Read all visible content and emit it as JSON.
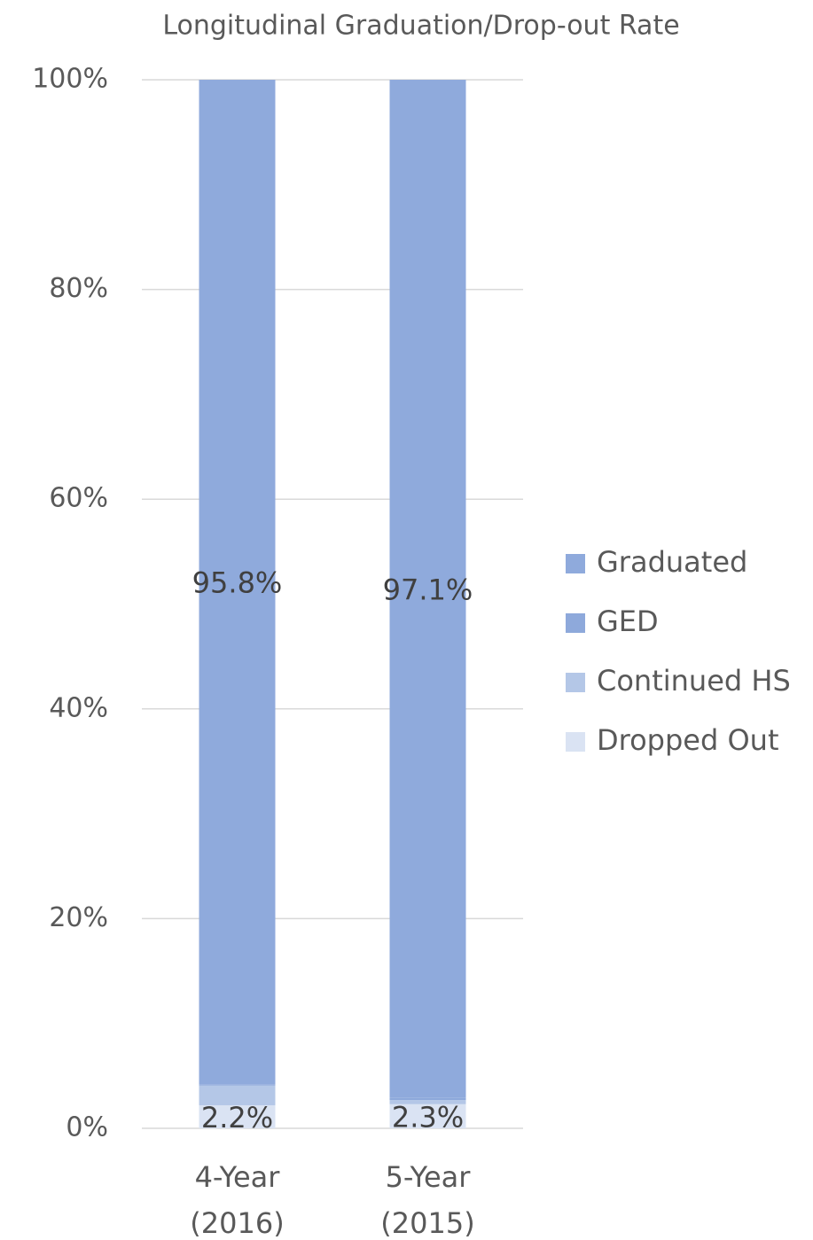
{
  "chart_data": {
    "type": "stacked_bar",
    "title": "Longitudinal Graduation/Drop-out Rate",
    "categories": [
      "4-Year (2016)",
      "5-Year (2015)"
    ],
    "series": [
      {
        "name": "Dropped Out",
        "color": "#dae3f3",
        "values": [
          2.2,
          2.3
        ],
        "value_labels": [
          "2.2%",
          "2.3%"
        ]
      },
      {
        "name": "Continued HS",
        "color": "#b4c7e7",
        "values": [
          1.9,
          0.4
        ]
      },
      {
        "name": "GED",
        "color": "#8ea9db",
        "values": [
          0.1,
          0.2
        ]
      },
      {
        "name": "Graduated",
        "color": "#8faadc",
        "values": [
          95.8,
          97.1
        ],
        "value_labels": [
          "95.8%",
          "97.1%"
        ]
      }
    ],
    "ylim": [
      0,
      100
    ],
    "yticks": [
      {
        "value": 0,
        "label": "0%"
      },
      {
        "value": 20,
        "label": "20%"
      },
      {
        "value": 40,
        "label": "40%"
      },
      {
        "value": 60,
        "label": "60%"
      },
      {
        "value": 80,
        "label": "80%"
      },
      {
        "value": 100,
        "label": "100%"
      }
    ],
    "grid": true,
    "legend": "right"
  }
}
